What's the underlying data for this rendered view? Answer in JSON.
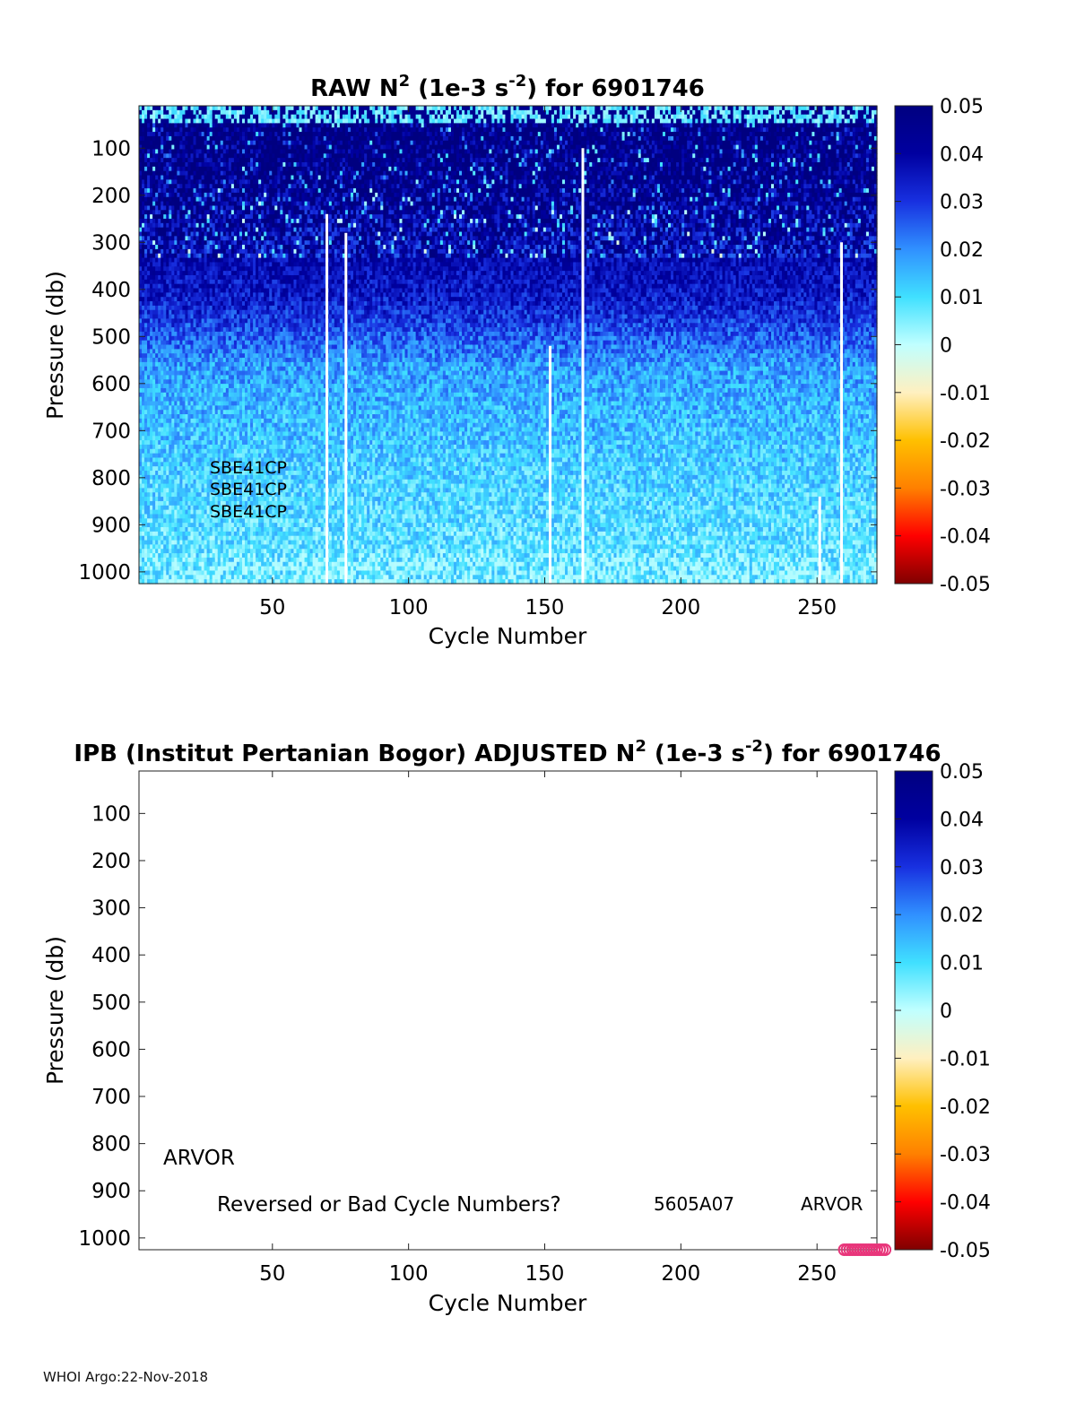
{
  "page": {
    "footer": "WHOI Argo:22-Nov-2018"
  },
  "colors": {
    "scale": [
      "#800000",
      "#ff0000",
      "#ff8000",
      "#ffc000",
      "#fff0c0",
      "#c0ffff",
      "#40e0ff",
      "#3090ff",
      "#1830e0",
      "#0000a0",
      "#000080"
    ],
    "marker": "#e8357a",
    "gap": "#ffffff"
  },
  "chart_data": [
    {
      "type": "heatmap",
      "title_parts": [
        "RAW N",
        "2",
        " (1e-3 s",
        "-2",
        ") for 6901746"
      ],
      "xlabel": "Cycle Number",
      "ylabel": "Pressure (db)",
      "xlim": [
        1,
        272
      ],
      "ylim": [
        1025,
        10
      ],
      "xticks": [
        50,
        100,
        150,
        200,
        250
      ],
      "yticks": [
        100,
        200,
        300,
        400,
        500,
        600,
        700,
        800,
        900,
        1000
      ],
      "colorbar": {
        "min": -0.05,
        "max": 0.05,
        "ticks": [
          "0.05",
          "0.04",
          "0.03",
          "0.02",
          "0.01",
          "0",
          "-0.01",
          "-0.02",
          "-0.03",
          "-0.04",
          "-0.05"
        ]
      },
      "annotations": [
        "SBE41CP",
        "SBE41CP",
        "SBE41CP"
      ],
      "value_profile": [
        {
          "p": 10,
          "v": 0.004
        },
        {
          "p": 40,
          "v": 0.05
        },
        {
          "p": 150,
          "v": 0.048
        },
        {
          "p": 300,
          "v": 0.04
        },
        {
          "p": 420,
          "v": 0.034
        },
        {
          "p": 560,
          "v": 0.018
        },
        {
          "p": 800,
          "v": 0.011
        },
        {
          "p": 1025,
          "v": 0.007
        }
      ],
      "missing_profiles": [
        {
          "cycle": 70,
          "from_p": 240
        },
        {
          "cycle": 77,
          "from_p": 280
        },
        {
          "cycle": 152,
          "from_p": 520
        },
        {
          "cycle": 164,
          "from_p": 100
        },
        {
          "cycle": 251,
          "from_p": 840
        },
        {
          "cycle": 259,
          "from_p": 300
        }
      ]
    },
    {
      "type": "heatmap",
      "title_parts": [
        "IPB (Institut Pertanian Bogor)  ADJUSTED N",
        "2",
        " (1e-3 s",
        "-2",
        ") for 6901746"
      ],
      "xlabel": "Cycle Number",
      "ylabel": "Pressure (db)",
      "xlim": [
        1,
        272
      ],
      "ylim": [
        1025,
        10
      ],
      "xticks": [
        50,
        100,
        150,
        200,
        250
      ],
      "yticks": [
        100,
        200,
        300,
        400,
        500,
        600,
        700,
        800,
        900,
        1000
      ],
      "colorbar": {
        "min": -0.05,
        "max": 0.05,
        "ticks": [
          "0.05",
          "0.04",
          "0.03",
          "0.02",
          "0.01",
          "0",
          "-0.01",
          "-0.02",
          "-0.03",
          "-0.04",
          "-0.05"
        ]
      },
      "annotations": {
        "float_type": "ARVOR",
        "warning": "Reversed or Bad Cycle Numbers?",
        "serial": "5605A07",
        "platform": "ARVOR"
      },
      "markers": {
        "pressure": 1025,
        "cycles": [
          260,
          261,
          262,
          263,
          264,
          265,
          266,
          267,
          268,
          269,
          270,
          271,
          272,
          273,
          274,
          275
        ]
      }
    }
  ]
}
